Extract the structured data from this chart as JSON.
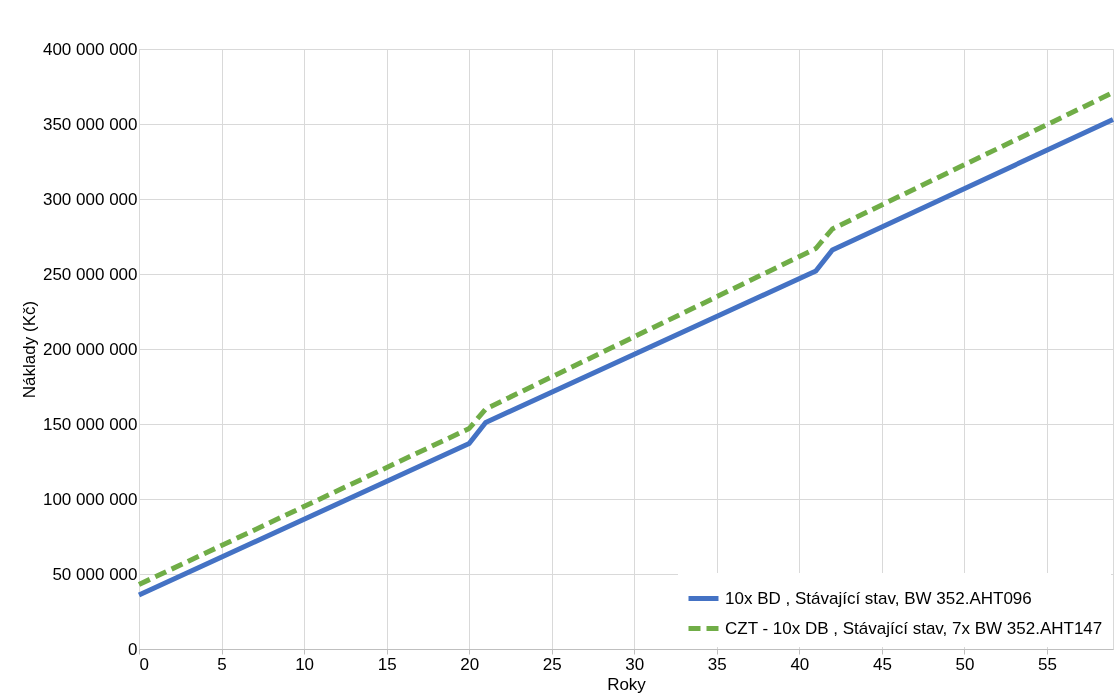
{
  "chart_data": {
    "type": "line",
    "xlabel": "Roky",
    "ylabel": "Náklady (Kč)",
    "xlim": [
      0,
      59
    ],
    "xticks": [
      0,
      5,
      10,
      15,
      20,
      25,
      30,
      35,
      40,
      45,
      50,
      55
    ],
    "ylim": [
      0,
      400000000
    ],
    "yticks": [
      {
        "value": 0,
        "label": "0"
      },
      {
        "value": 50000000,
        "label": "50 000 000"
      },
      {
        "value": 100000000,
        "label": "100 000 000"
      },
      {
        "value": 150000000,
        "label": "150 000 000"
      },
      {
        "value": 200000000,
        "label": "200 000 000"
      },
      {
        "value": 250000000,
        "label": "250 000 000"
      },
      {
        "value": 300000000,
        "label": "300 000 000"
      },
      {
        "value": 350000000,
        "label": "350 000 000"
      },
      {
        "value": 400000000,
        "label": "400 000 000"
      }
    ],
    "grid": true,
    "legend": "bottom right",
    "marker": "none",
    "series": [
      {
        "name": "10x BD , Stávající stav, BW 352.AHT096",
        "color": "#4472c4",
        "line_style": "solid",
        "x": [
          0,
          20,
          21,
          41,
          42,
          59
        ],
        "values": [
          36000000,
          137000000,
          151000000,
          252000000,
          266000000,
          353000000
        ]
      },
      {
        "name": "CZT - 10x DB , Stávající stav, 7x BW 352.AHT147",
        "color": "#70ad47",
        "line_style": "dashed",
        "x": [
          0,
          20,
          21,
          41,
          42,
          59
        ],
        "values": [
          43000000,
          147000000,
          160000000,
          267000000,
          280000000,
          371000000
        ]
      }
    ]
  }
}
